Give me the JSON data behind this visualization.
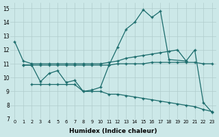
{
  "xlabel": "Humidex (Indice chaleur)",
  "xlim": [
    -0.5,
    23.5
  ],
  "ylim": [
    7,
    15.4
  ],
  "yticks": [
    7,
    8,
    9,
    10,
    11,
    12,
    13,
    14,
    15
  ],
  "xticks": [
    0,
    1,
    2,
    3,
    4,
    5,
    6,
    7,
    8,
    9,
    10,
    11,
    12,
    13,
    14,
    15,
    16,
    17,
    18,
    19,
    20,
    21,
    22,
    23
  ],
  "bg_color": "#cce8e8",
  "grid_color": "#b0cccc",
  "line_color": "#1a6b6b",
  "line1_x": [
    0,
    1,
    2,
    3,
    4,
    5,
    6,
    7,
    8,
    9,
    10,
    11,
    12,
    13,
    14,
    15,
    16,
    17,
    18,
    19,
    20
  ],
  "line1_y": [
    12.6,
    11.2,
    11.0,
    11.0,
    11.0,
    11.0,
    11.0,
    11.0,
    11.0,
    11.0,
    11.0,
    11.1,
    11.2,
    11.4,
    11.5,
    11.6,
    11.7,
    11.8,
    11.9,
    12.0,
    11.2
  ],
  "line2_x": [
    1,
    2,
    3,
    4,
    5,
    6,
    7,
    8,
    9,
    10,
    11,
    12,
    13,
    14,
    15,
    16,
    17,
    18,
    20,
    21,
    22,
    23
  ],
  "line2_y": [
    10.9,
    10.9,
    9.7,
    10.3,
    10.5,
    9.65,
    9.8,
    9.0,
    9.1,
    9.3,
    10.9,
    12.2,
    13.5,
    14.0,
    14.9,
    14.35,
    14.8,
    11.3,
    11.2,
    12.0,
    8.2,
    7.5
  ],
  "line3_x": [
    1,
    2,
    3,
    4,
    5,
    6,
    7,
    8,
    9,
    10,
    11,
    12,
    13,
    14,
    15,
    16,
    17,
    18,
    19,
    20,
    21,
    22,
    23
  ],
  "line3_y": [
    10.9,
    10.9,
    10.9,
    10.9,
    10.9,
    10.9,
    10.9,
    10.9,
    10.9,
    10.9,
    10.9,
    11.0,
    11.0,
    11.0,
    11.0,
    11.1,
    11.1,
    11.1,
    11.1,
    11.1,
    11.1,
    11.0,
    11.0
  ],
  "line4_x": [
    2,
    3,
    4,
    5,
    6,
    7,
    8,
    9,
    10,
    11,
    12,
    13,
    14,
    15,
    16,
    17,
    18,
    19,
    20,
    21,
    22,
    23
  ],
  "line4_y": [
    9.5,
    9.5,
    9.5,
    9.5,
    9.5,
    9.5,
    9.0,
    9.0,
    9.0,
    8.8,
    8.8,
    8.7,
    8.6,
    8.5,
    8.4,
    8.3,
    8.2,
    8.1,
    8.0,
    7.9,
    7.7,
    7.55
  ]
}
